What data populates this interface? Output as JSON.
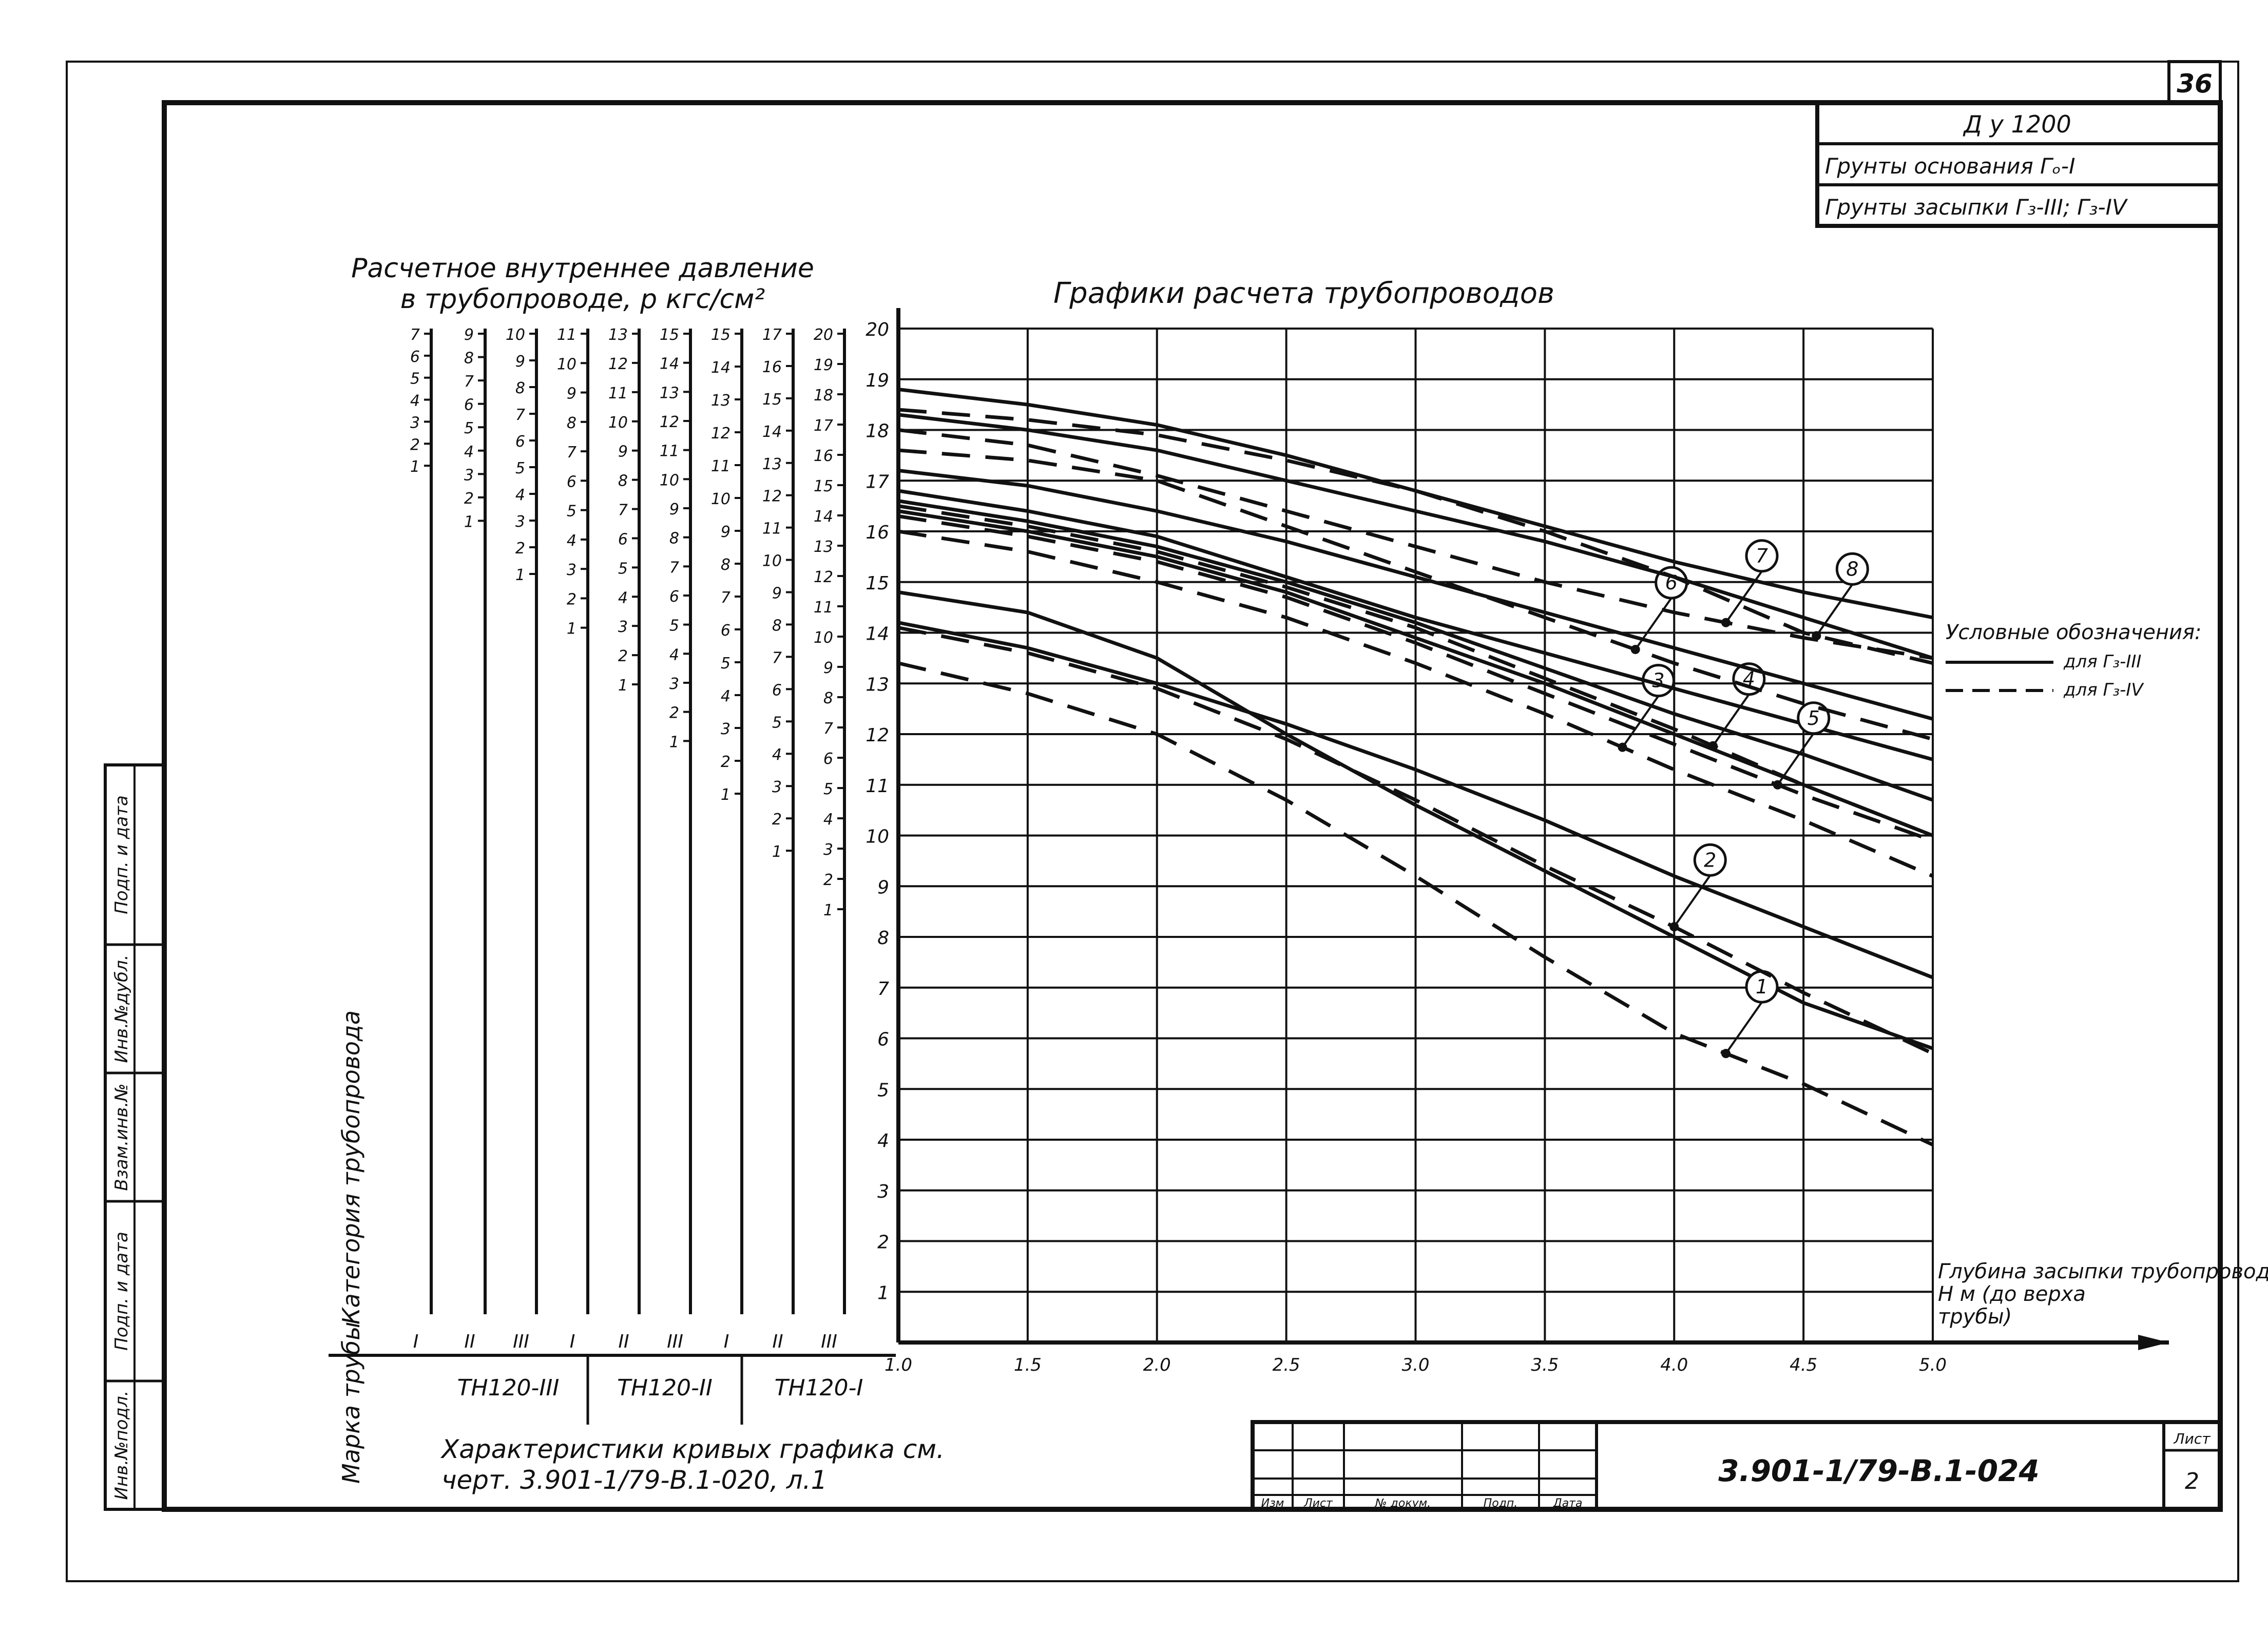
{
  "sheet": {
    "corner_number": "36",
    "title_block": {
      "du": "Д у 1200",
      "base_soils": "Грунты основания Гₒ-I",
      "fill_soils": "Грунты засыпки Г₃-III; Г₃-IV"
    },
    "left_strip": [
      "Инв.№подл.",
      "Подп. и дата",
      "Взам.инв.№",
      "Инв.№дубл.",
      "Подп. и дата"
    ],
    "stamp_headers": [
      "Изм",
      "Лист",
      "№ докум.",
      "Подп.",
      "Дата"
    ],
    "doc_code": "3.901-1/79-В.1-024",
    "sheet_label": "Лист",
    "sheet_no": "2",
    "note_line1": "Характеристики кривых графика см.",
    "note_line2": "черт. 3.901-1/79-В.1-020, л.1"
  },
  "pressure_scales": {
    "title_line1": "Расчетное внутреннее давление",
    "title_line2": "в трубопроводе, р кгс/см²",
    "category_label": "Категория трубопровода",
    "mark_label": "Марка трубы",
    "categories": [
      "I",
      "II",
      "III",
      "I",
      "II",
      "III",
      "I",
      "II",
      "III"
    ],
    "marks": [
      "ТН120-III",
      "ТН120-II",
      "ТН120-I"
    ],
    "scales": [
      {
        "min": 1,
        "max": 7
      },
      {
        "min": 1,
        "max": 9
      },
      {
        "min": 1,
        "max": 10
      },
      {
        "min": 1,
        "max": 11
      },
      {
        "min": 1,
        "max": 13
      },
      {
        "min": 1,
        "max": 15
      },
      {
        "min": 1,
        "max": 15
      },
      {
        "min": 1,
        "max": 17
      },
      {
        "min": 1,
        "max": 20
      }
    ]
  },
  "legend": {
    "title": "Условные обозначения:",
    "solid": "для Г₃-III",
    "dashed": "для Г₃-IV"
  },
  "chart_data": {
    "type": "line",
    "title": "Графики расчета трубопроводов",
    "xlabel": "Глубина засыпки трубопровода Н м (до верха трубы)",
    "ylabel": "",
    "xlim": [
      1.0,
      5.0
    ],
    "ylim": [
      0,
      20
    ],
    "x_ticks": [
      "1.0",
      "1.5",
      "2.0",
      "2.5",
      "3.0",
      "3.5",
      "4.0",
      "4.5",
      "5.0"
    ],
    "y_ticks": [
      "1",
      "2",
      "3",
      "4",
      "5",
      "6",
      "7",
      "8",
      "9",
      "10",
      "11",
      "12",
      "13",
      "14",
      "15",
      "16",
      "17",
      "18",
      "19",
      "20"
    ],
    "grid": true,
    "legend_position": "right",
    "x": [
      1.0,
      1.5,
      2.0,
      2.5,
      3.0,
      3.5,
      4.0,
      4.5,
      5.0
    ],
    "series": [
      {
        "name": "1",
        "style": "solid",
        "values": [
          14.8,
          14.4,
          13.5,
          12.0,
          10.6,
          9.3,
          8.0,
          6.7,
          5.8
        ]
      },
      {
        "name": "1",
        "style": "dashed",
        "values": [
          13.4,
          12.8,
          12.0,
          10.7,
          9.2,
          7.6,
          6.1,
          5.1,
          3.9
        ]
      },
      {
        "name": "2",
        "style": "solid",
        "values": [
          14.2,
          13.7,
          13.0,
          12.2,
          11.3,
          10.3,
          9.2,
          8.2,
          7.2
        ]
      },
      {
        "name": "2",
        "style": "dashed",
        "values": [
          14.1,
          13.6,
          12.9,
          11.9,
          10.7,
          9.4,
          8.2,
          6.9,
          5.7
        ]
      },
      {
        "name": "3",
        "style": "solid",
        "values": [
          16.4,
          16.0,
          15.5,
          14.8,
          13.9,
          13.0,
          12.0,
          11.0,
          10.0
        ]
      },
      {
        "name": "3",
        "style": "dashed",
        "values": [
          16.0,
          15.6,
          15.0,
          14.3,
          13.4,
          12.4,
          11.3,
          10.3,
          9.2
        ]
      },
      {
        "name": "4",
        "style": "solid",
        "values": [
          16.8,
          16.4,
          15.9,
          15.1,
          14.3,
          13.6,
          12.9,
          12.2,
          11.5
        ]
      },
      {
        "name": "4",
        "style": "dashed",
        "values": [
          16.5,
          16.1,
          15.6,
          14.9,
          14.1,
          13.1,
          12.1,
          11.0,
          10.0
        ]
      },
      {
        "name": "5",
        "style": "solid",
        "values": [
          16.6,
          16.2,
          15.7,
          15.0,
          14.2,
          13.3,
          12.4,
          11.6,
          10.7
        ]
      },
      {
        "name": "5",
        "style": "dashed",
        "values": [
          16.3,
          15.9,
          15.4,
          14.7,
          13.8,
          12.8,
          11.8,
          10.8,
          9.9
        ]
      },
      {
        "name": "6",
        "style": "solid",
        "values": [
          17.2,
          16.9,
          16.4,
          15.8,
          15.1,
          14.4,
          13.7,
          13.0,
          12.3
        ]
      },
      {
        "name": "6",
        "style": "dashed",
        "values": [
          17.6,
          17.4,
          17.0,
          16.1,
          15.2,
          14.3,
          13.4,
          12.6,
          11.9
        ]
      },
      {
        "name": "7",
        "style": "solid",
        "values": [
          18.3,
          18.0,
          17.6,
          17.0,
          16.4,
          15.8,
          15.1,
          14.3,
          13.5
        ]
      },
      {
        "name": "7",
        "style": "dashed",
        "values": [
          18.0,
          17.7,
          17.1,
          16.4,
          15.7,
          15.0,
          14.4,
          13.9,
          13.5
        ]
      },
      {
        "name": "8",
        "style": "solid",
        "values": [
          18.8,
          18.5,
          18.1,
          17.5,
          16.8,
          16.1,
          15.4,
          14.8,
          14.3
        ]
      },
      {
        "name": "8",
        "style": "dashed",
        "values": [
          18.4,
          18.2,
          17.9,
          17.4,
          16.8,
          16.0,
          15.1,
          14.0,
          13.4
        ]
      }
    ]
  }
}
